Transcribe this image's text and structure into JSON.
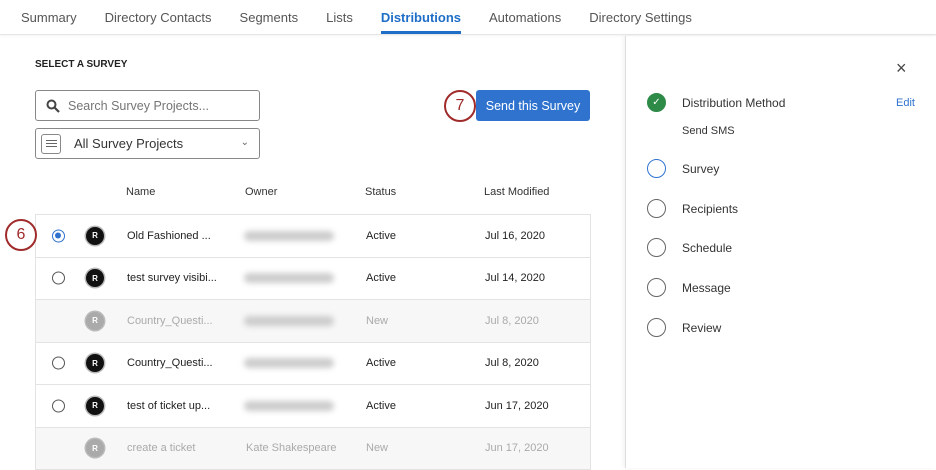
{
  "tabs": [
    "Summary",
    "Directory Contacts",
    "Segments",
    "Lists",
    "Distributions",
    "Automations",
    "Directory Settings"
  ],
  "active_tab": "Distributions",
  "section_title": "SELECT A SURVEY",
  "search": {
    "placeholder": "Search Survey Projects..."
  },
  "filter": {
    "selected": "All Survey Projects"
  },
  "send_button": "Send this Survey",
  "callouts": {
    "send": "7",
    "row": "6"
  },
  "table": {
    "headers": {
      "name": "Name",
      "owner": "Owner",
      "status": "Status",
      "modified": "Last Modified"
    },
    "rows": [
      {
        "name": "Old Fashioned ...",
        "owner": "",
        "status": "Active",
        "modified": "Jul 16, 2020",
        "selectable": true,
        "selected": true
      },
      {
        "name": "test survey visibi...",
        "owner": "",
        "status": "Active",
        "modified": "Jul 14, 2020",
        "selectable": true,
        "selected": false
      },
      {
        "name": "Country_Questi...",
        "owner": "",
        "status": "New",
        "modified": "Jul 8, 2020",
        "selectable": false,
        "selected": false
      },
      {
        "name": "Country_Questi...",
        "owner": "",
        "status": "Active",
        "modified": "Jul 8, 2020",
        "selectable": true,
        "selected": false
      },
      {
        "name": "test of ticket up...",
        "owner": "",
        "status": "Active",
        "modified": "Jun 17, 2020",
        "selectable": true,
        "selected": false
      },
      {
        "name": "create a ticket",
        "owner": "Kate Shakespeare",
        "status": "New",
        "modified": "Jun 17, 2020",
        "selectable": false,
        "selected": false
      }
    ],
    "project_icon_letter": "R"
  },
  "panel": {
    "close_icon": "×",
    "steps": [
      {
        "label": "Distribution Method",
        "state": "done",
        "detail": "Send SMS",
        "action": "Edit"
      },
      {
        "label": "Survey",
        "state": "current"
      },
      {
        "label": "Recipients",
        "state": "todo"
      },
      {
        "label": "Schedule",
        "state": "todo"
      },
      {
        "label": "Message",
        "state": "todo"
      },
      {
        "label": "Review",
        "state": "todo"
      }
    ]
  },
  "colors": {
    "accent": "#2f73cf",
    "done": "#2e8a47",
    "callout": "#a02b2b"
  }
}
